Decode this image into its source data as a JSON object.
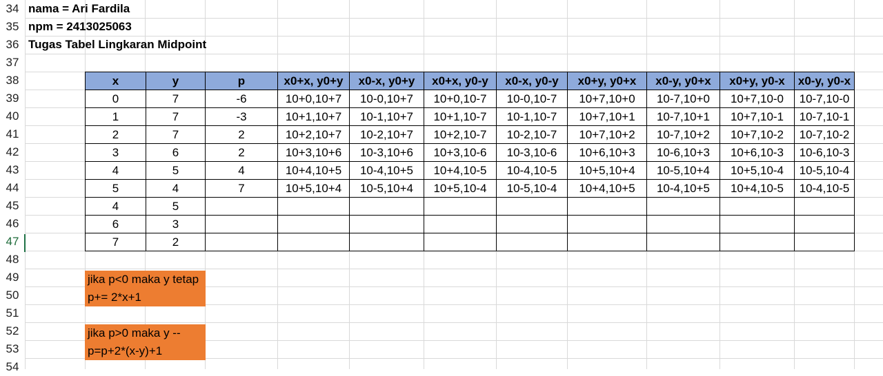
{
  "rows": [
    "34",
    "35",
    "36",
    "37",
    "38",
    "39",
    "40",
    "41",
    "42",
    "43",
    "44",
    "45",
    "46",
    "47",
    "48",
    "49",
    "50",
    "51",
    "52",
    "53",
    "54"
  ],
  "active_row": "47",
  "info": {
    "name_line": "nama = Ari Fardila",
    "npm_line": "npm = 2413025063",
    "title_line": "Tugas Tabel Lingkaran Midpoint"
  },
  "table": {
    "headers": [
      "x",
      "y",
      "p",
      "x0+x, y0+y",
      "x0-x, y0+y",
      "x0+x, y0-y",
      "x0-x, y0-y",
      "x0+y, y0+x",
      "x0-y, y0+x",
      "x0+y, y0-x",
      "x0-y, y0-x"
    ],
    "rows": [
      [
        "0",
        "7",
        "-6",
        "10+0,10+7",
        "10-0,10+7",
        "10+0,10-7",
        "10-0,10-7",
        "10+7,10+0",
        "10-7,10+0",
        "10+7,10-0",
        "10-7,10-0"
      ],
      [
        "1",
        "7",
        "-3",
        "10+1,10+7",
        "10-1,10+7",
        "10+1,10-7",
        "10-1,10-7",
        "10+7,10+1",
        "10-7,10+1",
        "10+7,10-1",
        "10-7,10-1"
      ],
      [
        "2",
        "7",
        "2",
        "10+2,10+7",
        "10-2,10+7",
        "10+2,10-7",
        "10-2,10-7",
        "10+7,10+2",
        "10-7,10+2",
        "10+7,10-2",
        "10-7,10-2"
      ],
      [
        "3",
        "6",
        "2",
        "10+3,10+6",
        "10-3,10+6",
        "10+3,10-6",
        "10-3,10-6",
        "10+6,10+3",
        "10-6,10+3",
        "10+6,10-3",
        "10-6,10-3"
      ],
      [
        "4",
        "5",
        "4",
        "10+4,10+5",
        "10-4,10+5",
        "10+4,10-5",
        "10-4,10-5",
        "10+5,10+4",
        "10-5,10+4",
        "10+5,10-4",
        "10-5,10-4"
      ],
      [
        "5",
        "4",
        "7",
        "10+5,10+4",
        "10-5,10+4",
        "10+5,10-4",
        "10-5,10-4",
        "10+4,10+5",
        "10-4,10+5",
        "10+4,10-5",
        "10-4,10-5"
      ],
      [
        "4",
        "5",
        "",
        "",
        "",
        "",
        "",
        "",
        "",
        "",
        ""
      ],
      [
        "6",
        "3",
        "",
        "",
        "",
        "",
        "",
        "",
        "",
        "",
        ""
      ],
      [
        "7",
        "2",
        "",
        "",
        "",
        "",
        "",
        "",
        "",
        "",
        ""
      ]
    ]
  },
  "notes": [
    {
      "lines": [
        "jika p<0 maka y tetap",
        "p+= 2*x+1"
      ]
    },
    {
      "lines": [
        "jika p>0 maka y --",
        "p=p+2*(x-y)+1"
      ]
    }
  ],
  "colors": {
    "header_fill": "#8eaadb",
    "note_fill": "#ed7d31",
    "gridline": "#d9d9d9",
    "active_row_marker": "#1e7145"
  }
}
